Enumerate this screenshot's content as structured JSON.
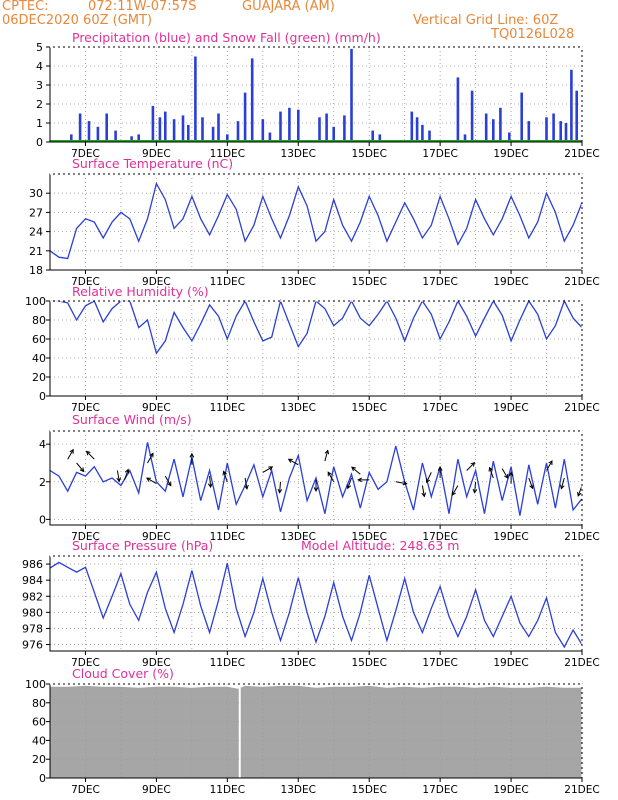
{
  "header": {
    "source": "CPTEC:",
    "coords": "072:11W-07:57S",
    "location": "GUAJARA (AM)",
    "run": "06DEC2020 60Z (GMT)",
    "grid_note": "Vertical Grid Line: 60Z",
    "product_code": "TQ0126L028"
  },
  "colors": {
    "header": "#e8883a",
    "title": "#e0309a",
    "series": "#2b3fd8",
    "snow": "#1fa31f",
    "cloud": "#a6a6a6",
    "grid": "#9a9a9a",
    "arrow": "#000000"
  },
  "x_axis": {
    "start": "06DEC2020 06Z",
    "end": "21DEC2020 00Z",
    "tick_labels": [
      "7DEC",
      "9DEC",
      "11DEC",
      "13DEC",
      "15DEC",
      "17DEC",
      "19DEC",
      "21DEC"
    ],
    "tick_days": [
      1,
      3,
      5,
      7,
      9,
      11,
      13,
      15
    ],
    "vertical_grid": "daily at 06Z"
  },
  "chart_data": [
    {
      "type": "bar",
      "title": "Precipitation (blue) and Snow Fall (green) (mm/h)",
      "ylim": [
        0,
        5
      ],
      "yticks": [
        0,
        1,
        2,
        3,
        4,
        5
      ],
      "series": [
        {
          "name": "Precipitation",
          "x": [
            0.6,
            0.85,
            1.1,
            1.35,
            1.6,
            1.85,
            2.3,
            2.5,
            2.9,
            3.1,
            3.25,
            3.5,
            3.75,
            3.9,
            4.1,
            4.3,
            4.6,
            4.75,
            5.0,
            5.3,
            5.5,
            5.7,
            6.0,
            6.2,
            6.5,
            6.75,
            7.0,
            7.6,
            7.8,
            8.0,
            8.3,
            8.5,
            9.1,
            9.3,
            10.2,
            10.35,
            10.5,
            10.7,
            11.5,
            11.7,
            11.9,
            12.3,
            12.5,
            12.7,
            12.95,
            13.3,
            13.5,
            14.0,
            14.2,
            14.4,
            14.55,
            14.7,
            14.85
          ],
          "values": [
            0.4,
            1.5,
            1.1,
            0.8,
            1.5,
            0.6,
            0.3,
            0.4,
            1.9,
            1.3,
            1.6,
            1.2,
            1.4,
            0.9,
            4.5,
            1.3,
            0.8,
            1.5,
            0.4,
            1.1,
            2.6,
            4.4,
            1.2,
            0.5,
            1.6,
            1.8,
            1.7,
            1.3,
            1.5,
            0.8,
            1.4,
            4.9,
            0.6,
            0.4,
            1.6,
            1.3,
            0.9,
            0.6,
            3.4,
            0.4,
            2.7,
            1.5,
            1.2,
            1.8,
            0.5,
            2.6,
            1.1,
            1.3,
            1.5,
            1.1,
            1.0,
            3.8,
            2.7
          ]
        },
        {
          "name": "Snow Fall",
          "x": [
            0,
            15
          ],
          "values": [
            0,
            0
          ]
        }
      ]
    },
    {
      "type": "line",
      "title": "Surface Temperature (nC)",
      "ylim": [
        18,
        33
      ],
      "yticks": [
        18,
        21,
        24,
        27,
        30
      ],
      "x": [
        0.0,
        0.25,
        0.5,
        0.75,
        1.0,
        1.25,
        1.5,
        1.75,
        2.0,
        2.25,
        2.5,
        2.75,
        3.0,
        3.25,
        3.5,
        3.75,
        4.0,
        4.25,
        4.5,
        4.75,
        5.0,
        5.25,
        5.5,
        5.75,
        6.0,
        6.25,
        6.5,
        6.75,
        7.0,
        7.25,
        7.5,
        7.75,
        8.0,
        8.25,
        8.5,
        8.75,
        9.0,
        9.25,
        9.5,
        9.75,
        10.0,
        10.25,
        10.5,
        10.75,
        11.0,
        11.25,
        11.5,
        11.75,
        12.0,
        12.25,
        12.5,
        12.75,
        13.0,
        13.25,
        13.5,
        13.75,
        14.0,
        14.25,
        14.5,
        14.75,
        15.0
      ],
      "values": [
        21.0,
        20.0,
        19.8,
        24.5,
        26.0,
        25.5,
        23.0,
        25.5,
        27.0,
        26.0,
        22.5,
        26.0,
        31.5,
        29.0,
        24.5,
        26.0,
        29.5,
        26.0,
        23.5,
        26.5,
        29.8,
        27.5,
        22.5,
        25.0,
        29.5,
        26.0,
        23.0,
        26.5,
        31.0,
        28.0,
        22.5,
        24.0,
        29.0,
        25.0,
        22.5,
        25.5,
        29.5,
        26.5,
        22.5,
        25.5,
        28.5,
        26.0,
        23.0,
        25.0,
        29.5,
        26.0,
        22.0,
        24.5,
        29.0,
        26.0,
        23.5,
        26.0,
        29.5,
        26.5,
        23.0,
        25.5,
        30.0,
        27.0,
        22.5,
        25.0,
        28.5
      ]
    },
    {
      "type": "line",
      "title": "Relative Humidity (%)",
      "ylim": [
        0,
        100
      ],
      "yticks": [
        0,
        20,
        40,
        60,
        80,
        100
      ],
      "x": [
        0.0,
        0.25,
        0.5,
        0.75,
        1.0,
        1.25,
        1.5,
        1.75,
        2.0,
        2.25,
        2.5,
        2.75,
        3.0,
        3.25,
        3.5,
        3.75,
        4.0,
        4.25,
        4.5,
        4.75,
        5.0,
        5.25,
        5.5,
        5.75,
        6.0,
        6.25,
        6.5,
        6.75,
        7.0,
        7.25,
        7.5,
        7.75,
        8.0,
        8.25,
        8.5,
        8.75,
        9.0,
        9.25,
        9.5,
        9.75,
        10.0,
        10.25,
        10.5,
        10.75,
        11.0,
        11.25,
        11.5,
        11.75,
        12.0,
        12.25,
        12.5,
        12.75,
        13.0,
        13.25,
        13.5,
        13.75,
        14.0,
        14.25,
        14.5,
        14.75,
        15.0
      ],
      "values": [
        100,
        100,
        98,
        80,
        95,
        100,
        78,
        92,
        100,
        100,
        72,
        80,
        45,
        58,
        88,
        72,
        58,
        76,
        96,
        84,
        60,
        84,
        100,
        78,
        58,
        62,
        100,
        76,
        52,
        66,
        100,
        92,
        74,
        82,
        100,
        82,
        74,
        86,
        100,
        82,
        58,
        82,
        100,
        86,
        60,
        78,
        100,
        84,
        63,
        82,
        100,
        85,
        58,
        80,
        100,
        86,
        60,
        74,
        100,
        82,
        72
      ]
    },
    {
      "type": "line",
      "title": "Surface Wind (m/s)",
      "ylim": [
        -0.3,
        4.7
      ],
      "yticks": [
        0,
        2,
        4
      ],
      "x": [
        0.0,
        0.25,
        0.5,
        0.75,
        1.0,
        1.25,
        1.5,
        1.75,
        2.0,
        2.25,
        2.5,
        2.75,
        3.0,
        3.25,
        3.5,
        3.75,
        4.0,
        4.25,
        4.5,
        4.75,
        5.0,
        5.25,
        5.5,
        5.75,
        6.0,
        6.25,
        6.5,
        6.75,
        7.0,
        7.25,
        7.5,
        7.75,
        8.0,
        8.25,
        8.5,
        8.75,
        9.0,
        9.25,
        9.5,
        9.75,
        10.0,
        10.25,
        10.5,
        10.75,
        11.0,
        11.25,
        11.5,
        11.75,
        12.0,
        12.25,
        12.5,
        12.75,
        13.0,
        13.25,
        13.5,
        13.75,
        14.0,
        14.25,
        14.5,
        14.75,
        15.0
      ],
      "values": [
        2.6,
        2.3,
        1.5,
        2.5,
        2.3,
        2.8,
        2.0,
        2.2,
        1.8,
        2.6,
        1.4,
        4.1,
        2.0,
        1.5,
        3.2,
        1.2,
        3.3,
        1.0,
        2.6,
        0.5,
        3.0,
        0.8,
        1.8,
        2.9,
        1.2,
        2.6,
        0.4,
        2.2,
        3.4,
        1.0,
        2.2,
        0.3,
        2.8,
        1.2,
        2.4,
        0.6,
        2.5,
        1.6,
        2.0,
        3.9,
        2.0,
        0.5,
        3.0,
        1.2,
        2.8,
        0.3,
        3.2,
        1.2,
        2.6,
        0.3,
        3.1,
        1.0,
        2.8,
        0.2,
        2.9,
        0.8,
        3.0,
        0.6,
        3.2,
        0.5,
        1.1
      ],
      "arrows": {
        "x": [
          0.5,
          0.75,
          1.25,
          1.9,
          2.1,
          2.75,
          3.0,
          3.25,
          4.0,
          4.5,
          5.0,
          5.5,
          6.0,
          6.5,
          7.0,
          7.5,
          7.75,
          8.0,
          8.5,
          8.75,
          9.0,
          9.75,
          10.5,
          10.75,
          11.0,
          11.5,
          11.75,
          12.0,
          12.5,
          12.75,
          13.0,
          13.5,
          14.0,
          14.5,
          15.0
        ],
        "y": [
          3.2,
          3.0,
          3.2,
          2.6,
          2.1,
          3.0,
          1.9,
          2.3,
          2.9,
          2.3,
          2.0,
          2.2,
          2.5,
          2.0,
          2.9,
          2.1,
          3.1,
          2.0,
          2.2,
          2.4,
          2.1,
          2.0,
          1.8,
          2.5,
          2.2,
          1.8,
          2.6,
          2.0,
          2.2,
          2.7,
          1.9,
          2.2,
          2.6,
          2.2,
          1.8
        ],
        "angle_deg": [
          -60,
          50,
          -135,
          80,
          -70,
          -60,
          -150,
          60,
          -90,
          85,
          -110,
          80,
          -30,
          95,
          -150,
          90,
          -75,
          -120,
          110,
          -140,
          180,
          10,
          80,
          115,
          -90,
          120,
          -45,
          95,
          -110,
          60,
          -90,
          70,
          -60,
          105,
          110
        ]
      }
    },
    {
      "type": "line",
      "title": "Surface Pressure (hPa)",
      "annotation": "Model Altitude: 248.63 m",
      "ylim": [
        975.2,
        987
      ],
      "yticks": [
        976,
        978,
        980,
        982,
        984,
        986
      ],
      "x": [
        0.0,
        0.25,
        0.5,
        0.75,
        1.0,
        1.25,
        1.5,
        1.75,
        2.0,
        2.25,
        2.5,
        2.75,
        3.0,
        3.25,
        3.5,
        3.75,
        4.0,
        4.25,
        4.5,
        4.75,
        5.0,
        5.25,
        5.5,
        5.75,
        6.0,
        6.25,
        6.5,
        6.75,
        7.0,
        7.25,
        7.5,
        7.75,
        8.0,
        8.25,
        8.5,
        8.75,
        9.0,
        9.25,
        9.5,
        9.75,
        10.0,
        10.25,
        10.5,
        10.75,
        11.0,
        11.25,
        11.5,
        11.75,
        12.0,
        12.25,
        12.5,
        12.75,
        13.0,
        13.25,
        13.5,
        13.75,
        14.0,
        14.25,
        14.5,
        14.75,
        15.0
      ],
      "values": [
        985.5,
        986.2,
        985.6,
        985.0,
        985.6,
        982.5,
        979.3,
        982.0,
        984.8,
        981.0,
        979.0,
        982.5,
        985.0,
        980.5,
        977.5,
        981.0,
        985.2,
        980.8,
        977.5,
        981.5,
        986.1,
        980.5,
        977.0,
        980.0,
        984.2,
        980.0,
        976.5,
        980.0,
        984.3,
        980.0,
        976.3,
        979.5,
        983.7,
        979.5,
        976.5,
        980.0,
        984.6,
        980.5,
        976.5,
        980.2,
        984.2,
        980.0,
        977.5,
        980.5,
        983.2,
        979.5,
        977.0,
        979.5,
        982.8,
        979.0,
        977.0,
        979.5,
        982.0,
        978.7,
        977.0,
        979.0,
        981.8,
        977.5,
        975.7,
        977.8,
        976.0
      ]
    },
    {
      "type": "area",
      "title": "Cloud Cover (%)",
      "ylim": [
        0,
        100
      ],
      "yticks": [
        0,
        20,
        40,
        60,
        80,
        100
      ],
      "x": [
        0.0,
        0.5,
        1.0,
        1.5,
        2.0,
        2.5,
        3.0,
        3.5,
        4.0,
        4.5,
        5.0,
        5.3,
        5.5,
        6.0,
        6.5,
        7.0,
        7.5,
        8.0,
        8.5,
        9.0,
        9.5,
        10.0,
        10.5,
        11.0,
        11.5,
        12.0,
        12.5,
        13.0,
        13.5,
        14.0,
        14.5,
        15.0
      ],
      "values": [
        97,
        97,
        98,
        97,
        97,
        96,
        97,
        97,
        96,
        97,
        97,
        95,
        98,
        97,
        98,
        98,
        96,
        97,
        97,
        98,
        96,
        97,
        96,
        97,
        97,
        96,
        97,
        96,
        96,
        97,
        96,
        96
      ],
      "gap_at_x": 5.35
    }
  ]
}
